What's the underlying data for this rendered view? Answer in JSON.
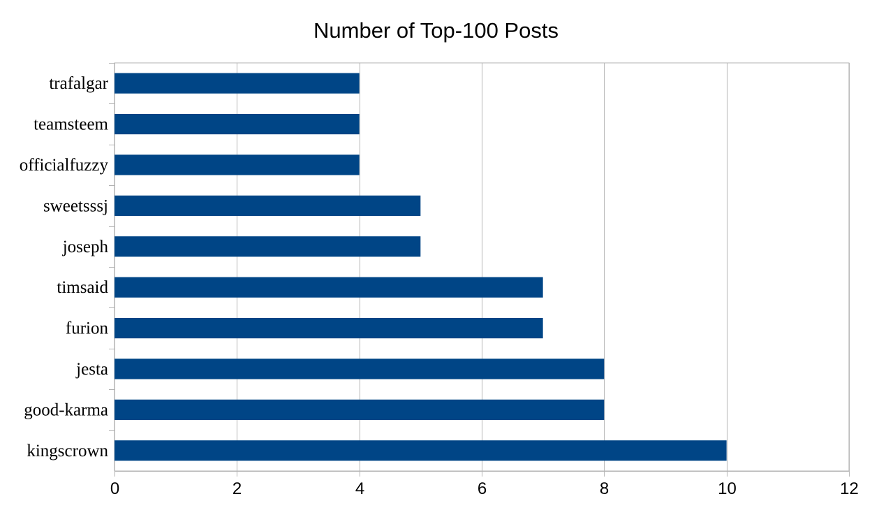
{
  "chart_data": {
    "type": "bar",
    "orientation": "horizontal",
    "title": "Number of Top-100 Posts",
    "xlabel": "",
    "ylabel": "",
    "categories": [
      "kingscrown",
      "good-karma",
      "jesta",
      "furion",
      "timsaid",
      "joseph",
      "sweetsssj",
      "officialfuzzy",
      "teamsteem",
      "trafalgar"
    ],
    "values": [
      10,
      8,
      8,
      7,
      7,
      5,
      5,
      4,
      4,
      4
    ],
    "xlim": [
      0,
      12
    ],
    "xticks": [
      "0",
      "2",
      "4",
      "6",
      "8",
      "10",
      "12"
    ],
    "grid": "vertical",
    "legend": "none",
    "bar_color": "#004586",
    "grid_color": "#b3b3b3"
  }
}
